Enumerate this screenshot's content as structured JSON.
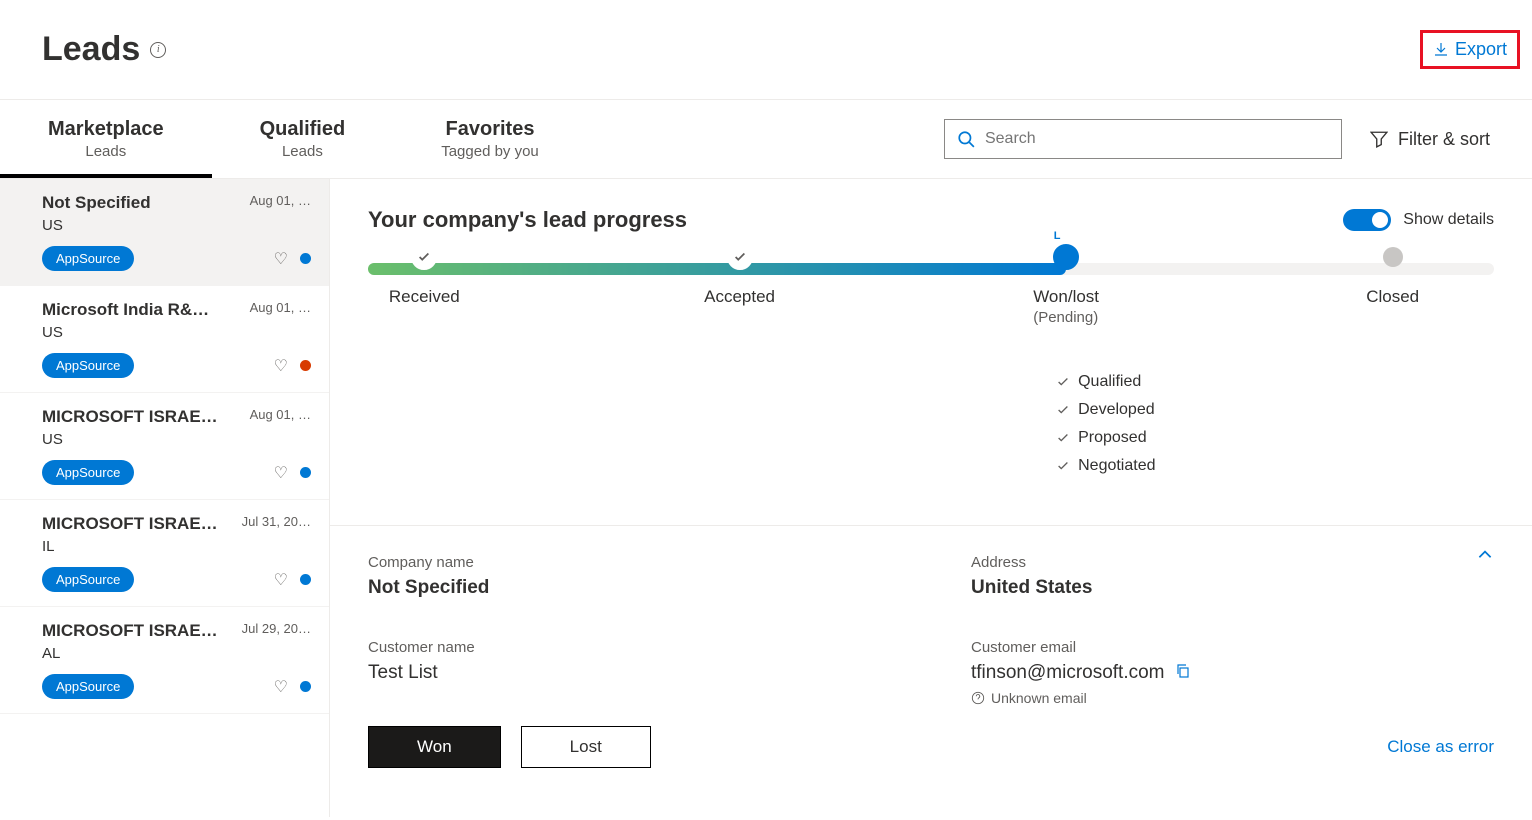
{
  "header": {
    "title": "Leads",
    "export_label": "Export"
  },
  "tabs": [
    {
      "main": "Marketplace",
      "sub": "Leads",
      "active": true
    },
    {
      "main": "Qualified",
      "sub": "Leads",
      "active": false
    },
    {
      "main": "Favorites",
      "sub": "Tagged by you",
      "active": false
    }
  ],
  "search": {
    "placeholder": "Search"
  },
  "filter_sort_label": "Filter & sort",
  "leads": [
    {
      "name": "Not Specified",
      "date": "Aug 01, …",
      "loc": "US",
      "badge": "AppSource",
      "dot_color": "#0078d4",
      "selected": true
    },
    {
      "name": "Microsoft India R&…",
      "date": "Aug 01, …",
      "loc": "US",
      "badge": "AppSource",
      "dot_color": "#d83b01",
      "selected": false
    },
    {
      "name": "MICROSOFT ISRAE…",
      "date": "Aug 01, …",
      "loc": "US",
      "badge": "AppSource",
      "dot_color": "#0078d4",
      "selected": false
    },
    {
      "name": "MICROSOFT ISRAE…",
      "date": "Jul 31, 20…",
      "loc": "IL",
      "badge": "AppSource",
      "dot_color": "#0078d4",
      "selected": false
    },
    {
      "name": "MICROSOFT ISRAE…",
      "date": "Jul 29, 20…",
      "loc": "AL",
      "badge": "AppSource",
      "dot_color": "#0078d4",
      "selected": false
    }
  ],
  "progress": {
    "title": "Your company's lead progress",
    "toggle_label": "Show details",
    "bar": {
      "fill_pct": 62,
      "gradient_from": "#6bbf6b",
      "gradient_to": "#0078d4",
      "track_color": "#f3f2f1"
    },
    "stages": [
      {
        "label": "Received",
        "pos_pct": 5,
        "state": "done"
      },
      {
        "label": "Accepted",
        "pos_pct": 33,
        "state": "done"
      },
      {
        "label": "Won/lost",
        "sub": "(Pending)",
        "pos_pct": 62,
        "state": "current"
      },
      {
        "label": "Closed",
        "pos_pct": 91,
        "state": "pending"
      }
    ],
    "checklist_pos_pct": 62,
    "checklist": [
      "Qualified",
      "Developed",
      "Proposed",
      "Negotiated"
    ]
  },
  "details": {
    "company_name_label": "Company name",
    "company_name": "Not Specified",
    "address_label": "Address",
    "address": "United States",
    "customer_name_label": "Customer name",
    "customer_name": "Test List",
    "customer_email_label": "Customer email",
    "customer_email": "tfinson@microsoft.com",
    "email_note": "Unknown email"
  },
  "actions": {
    "won": "Won",
    "lost": "Lost",
    "close_error": "Close as error"
  }
}
